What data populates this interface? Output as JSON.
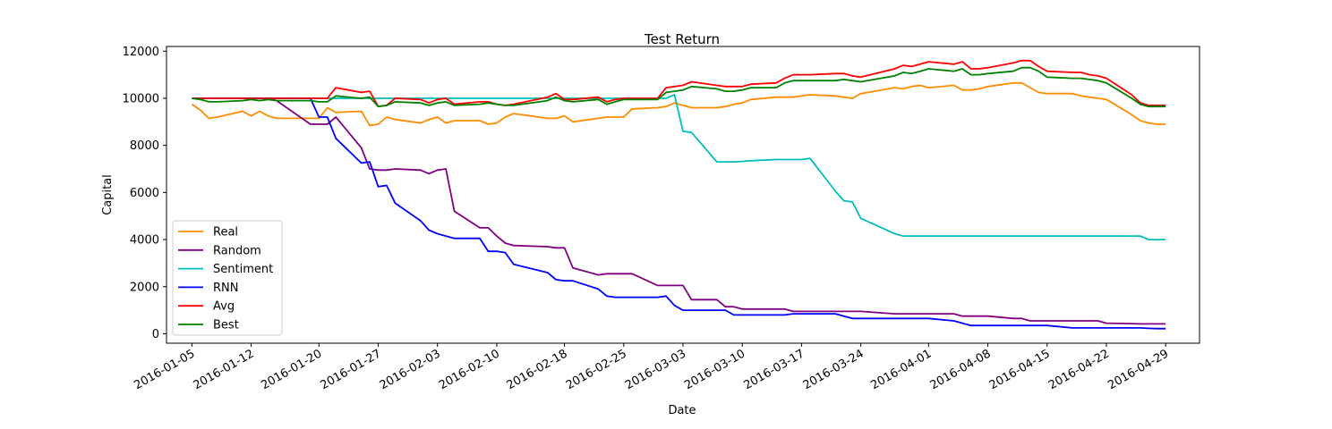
{
  "chart_data": {
    "type": "line",
    "title": "Test Return",
    "xlabel": "Date",
    "ylabel": "Capital",
    "ylim": [
      -400,
      12200
    ],
    "yticks": [
      0,
      2000,
      4000,
      6000,
      8000,
      10000,
      12000
    ],
    "xlim": [
      "2016-01-02",
      "2016-05-03"
    ],
    "xticks": [
      "2016-01-05",
      "2016-01-12",
      "2016-01-20",
      "2016-01-27",
      "2016-02-03",
      "2016-02-10",
      "2016-02-18",
      "2016-02-25",
      "2016-03-03",
      "2016-03-10",
      "2016-03-17",
      "2016-03-24",
      "2016-04-01",
      "2016-04-08",
      "2016-04-15",
      "2016-04-22",
      "2016-04-29"
    ],
    "grid": false,
    "legend": "lower-left",
    "x": [
      "2016-01-05",
      "2016-01-06",
      "2016-01-07",
      "2016-01-08",
      "2016-01-11",
      "2016-01-12",
      "2016-01-13",
      "2016-01-14",
      "2016-01-15",
      "2016-01-19",
      "2016-01-20",
      "2016-01-21",
      "2016-01-22",
      "2016-01-25",
      "2016-01-26",
      "2016-01-27",
      "2016-01-28",
      "2016-01-29",
      "2016-02-01",
      "2016-02-02",
      "2016-02-03",
      "2016-02-04",
      "2016-02-05",
      "2016-02-08",
      "2016-02-09",
      "2016-02-10",
      "2016-02-11",
      "2016-02-12",
      "2016-02-16",
      "2016-02-17",
      "2016-02-18",
      "2016-02-19",
      "2016-02-22",
      "2016-02-23",
      "2016-02-24",
      "2016-02-25",
      "2016-02-26",
      "2016-02-29",
      "2016-03-01",
      "2016-03-02",
      "2016-03-03",
      "2016-03-04",
      "2016-03-07",
      "2016-03-08",
      "2016-03-09",
      "2016-03-10",
      "2016-03-11",
      "2016-03-14",
      "2016-03-15",
      "2016-03-16",
      "2016-03-17",
      "2016-03-18",
      "2016-03-21",
      "2016-03-22",
      "2016-03-23",
      "2016-03-24",
      "2016-03-28",
      "2016-03-29",
      "2016-03-30",
      "2016-03-31",
      "2016-04-01",
      "2016-04-04",
      "2016-04-05",
      "2016-04-06",
      "2016-04-07",
      "2016-04-08",
      "2016-04-11",
      "2016-04-12",
      "2016-04-13",
      "2016-04-14",
      "2016-04-15",
      "2016-04-18",
      "2016-04-19",
      "2016-04-20",
      "2016-04-21",
      "2016-04-22",
      "2016-04-25",
      "2016-04-26",
      "2016-04-27",
      "2016-04-28",
      "2016-04-29"
    ],
    "series": [
      {
        "name": "Real",
        "color": "#ff8c00",
        "values": [
          9750,
          9500,
          9150,
          9200,
          9450,
          9250,
          9450,
          9250,
          9150,
          9150,
          9150,
          9600,
          9400,
          9450,
          8850,
          8900,
          9200,
          9100,
          8950,
          9100,
          9200,
          8950,
          9050,
          9050,
          8900,
          8950,
          9200,
          9350,
          9150,
          9150,
          9250,
          9000,
          9150,
          9200,
          9200,
          9200,
          9550,
          9600,
          9650,
          9800,
          9700,
          9600,
          9600,
          9650,
          9750,
          9800,
          9950,
          10050,
          10050,
          10050,
          10100,
          10150,
          10100,
          10050,
          10000,
          10200,
          10450,
          10400,
          10500,
          10550,
          10450,
          10550,
          10350,
          10350,
          10400,
          10500,
          10650,
          10650,
          10450,
          10250,
          10200,
          10200,
          10100,
          10050,
          10000,
          9950,
          9300,
          9050,
          8950,
          8900,
          8900
        ]
      },
      {
        "name": "Random",
        "color": "#800080",
        "values": [
          10000,
          10000,
          10000,
          10000,
          10000,
          10000,
          10000,
          10000,
          9900,
          8900,
          8900,
          8900,
          9200,
          7900,
          7000,
          6950,
          6950,
          7000,
          6950,
          6800,
          6950,
          7000,
          5200,
          4500,
          4500,
          4150,
          3850,
          3750,
          3700,
          3650,
          3650,
          2800,
          2500,
          2550,
          2550,
          2550,
          2550,
          2050,
          2050,
          2050,
          2050,
          1450,
          1450,
          1150,
          1150,
          1050,
          1050,
          1050,
          1050,
          950,
          950,
          950,
          950,
          950,
          950,
          950,
          850,
          850,
          850,
          850,
          850,
          850,
          750,
          750,
          750,
          750,
          650,
          650,
          550,
          550,
          550,
          550,
          550,
          550,
          550,
          450,
          430,
          420,
          420,
          420,
          420
        ]
      },
      {
        "name": "Sentiment",
        "color": "#00bfbf",
        "values": [
          10000,
          10000,
          10000,
          10000,
          10000,
          10000,
          10000,
          10000,
          10000,
          10000,
          10000,
          10000,
          10000,
          10000,
          10000,
          10000,
          10000,
          10000,
          10000,
          10000,
          10000,
          10000,
          10000,
          10000,
          10000,
          10000,
          10000,
          10000,
          10000,
          10000,
          10000,
          10000,
          10000,
          10000,
          10000,
          10000,
          10000,
          10000,
          10000,
          10150,
          8600,
          8550,
          7300,
          7300,
          7300,
          7320,
          7350,
          7400,
          7400,
          7400,
          7400,
          7450,
          6050,
          5650,
          5600,
          4900,
          4250,
          4150,
          4150,
          4150,
          4150,
          4150,
          4150,
          4150,
          4150,
          4150,
          4150,
          4150,
          4150,
          4150,
          4150,
          4150,
          4150,
          4150,
          4150,
          4150,
          4150,
          4150,
          4000,
          4000,
          4000
        ]
      },
      {
        "name": "RNN",
        "color": "#0000ff",
        "values": [
          10000,
          10000,
          10000,
          10000,
          10000,
          10000,
          10000,
          10000,
          10000,
          10000,
          9200,
          9200,
          8300,
          7250,
          7300,
          6250,
          6300,
          5550,
          4800,
          4400,
          4250,
          4150,
          4050,
          4050,
          3500,
          3500,
          3450,
          2950,
          2600,
          2300,
          2250,
          2250,
          1900,
          1600,
          1550,
          1550,
          1550,
          1550,
          1600,
          1200,
          1000,
          1000,
          1000,
          1000,
          800,
          800,
          800,
          800,
          800,
          850,
          850,
          850,
          850,
          750,
          650,
          650,
          650,
          650,
          650,
          650,
          650,
          550,
          450,
          350,
          350,
          350,
          350,
          350,
          350,
          350,
          350,
          250,
          250,
          250,
          250,
          250,
          250,
          250,
          230,
          220,
          220
        ]
      },
      {
        "name": "Avg",
        "color": "#ff0000",
        "values": [
          10000,
          10000,
          10000,
          10000,
          10000,
          10000,
          10000,
          10000,
          10000,
          10000,
          10000,
          10000,
          10450,
          10250,
          10300,
          9650,
          9700,
          10000,
          9950,
          9800,
          9950,
          10000,
          9750,
          9850,
          9850,
          9750,
          9700,
          9750,
          10050,
          10200,
          9950,
          9950,
          10050,
          9850,
          9950,
          10000,
          10000,
          10000,
          10450,
          10500,
          10550,
          10700,
          10550,
          10500,
          10500,
          10500,
          10600,
          10650,
          10850,
          11000,
          11000,
          11000,
          11050,
          11050,
          10950,
          10900,
          11250,
          11400,
          11350,
          11450,
          11550,
          11450,
          11550,
          11250,
          11250,
          11300,
          11500,
          11600,
          11600,
          11350,
          11150,
          11100,
          11100,
          11000,
          10950,
          10850,
          10150,
          9800,
          9700,
          9700,
          9700
        ]
      },
      {
        "name": "Best",
        "color": "#008000",
        "values": [
          10000,
          9950,
          9850,
          9850,
          9900,
          9950,
          9900,
          9950,
          9900,
          9900,
          9850,
          9850,
          10100,
          10000,
          10050,
          9650,
          9700,
          9850,
          9800,
          9700,
          9800,
          9850,
          9700,
          9750,
          9800,
          9750,
          9700,
          9700,
          9900,
          10050,
          9900,
          9850,
          9950,
          9750,
          9850,
          9950,
          9950,
          9950,
          10250,
          10300,
          10350,
          10500,
          10400,
          10300,
          10300,
          10350,
          10450,
          10450,
          10650,
          10750,
          10750,
          10750,
          10750,
          10800,
          10750,
          10700,
          10950,
          11100,
          11050,
          11150,
          11250,
          11150,
          11250,
          11000,
          11000,
          11050,
          11150,
          11300,
          11300,
          11150,
          10900,
          10850,
          10850,
          10800,
          10750,
          10650,
          10000,
          9750,
          9650,
          9650,
          9650
        ]
      }
    ]
  }
}
